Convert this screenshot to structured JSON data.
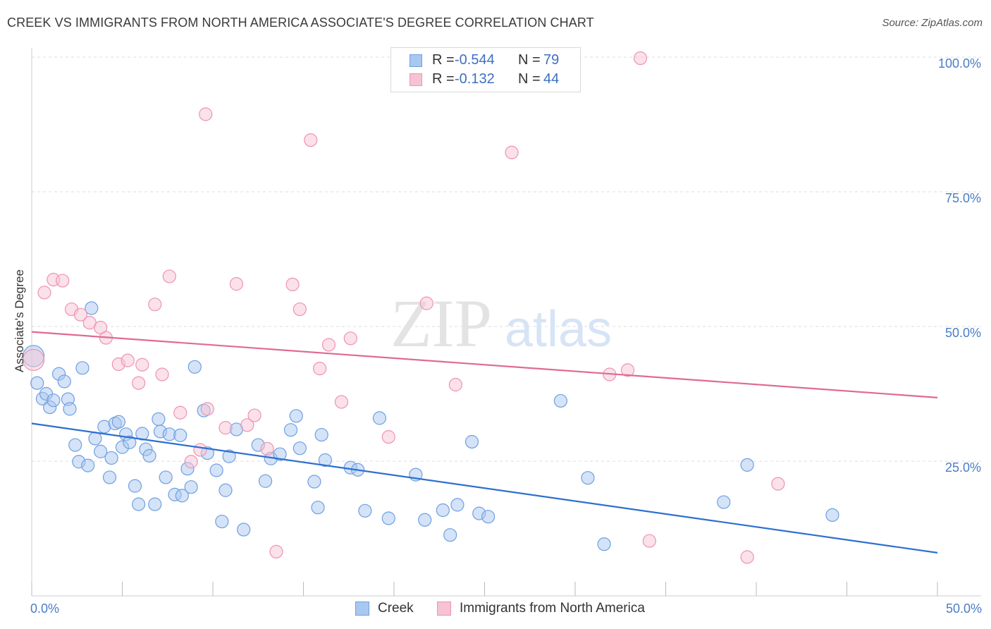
{
  "header": {
    "title": "CREEK VS IMMIGRANTS FROM NORTH AMERICA ASSOCIATE'S DEGREE CORRELATION CHART",
    "source": "Source: ZipAtlas.com"
  },
  "legend_top": {
    "rows": [
      {
        "r_label": "R =",
        "r_value": "-0.544",
        "n_label": "N =",
        "n_value": "79"
      },
      {
        "r_label": "R =",
        "r_value": "-0.132",
        "n_label": "N =",
        "n_value": "44"
      }
    ]
  },
  "legend_bottom": {
    "items": [
      "Creek",
      "Immigrants from North America"
    ]
  },
  "watermark": {
    "zip": "ZIP",
    "atlas": "atlas"
  },
  "colors": {
    "creek_fill": "#a9c8f0",
    "creek_stroke": "#6f9fe0",
    "creek_line": "#2d6fcf",
    "immig_fill": "#f7c3d3",
    "immig_stroke": "#ee93b1",
    "immig_line": "#e06a93",
    "tick_text": "#4a7cc7",
    "grid": "#dddddd"
  },
  "chart_data": {
    "type": "scatter",
    "title": "CREEK VS IMMIGRANTS FROM NORTH AMERICA ASSOCIATE'S DEGREE CORRELATION CHART",
    "xlabel": "",
    "ylabel": "Associate's Degree",
    "xlim": [
      0,
      50
    ],
    "ylim": [
      0,
      102
    ],
    "x_tick_labels": [
      "0.0%",
      "50.0%"
    ],
    "y_tick_values": [
      25,
      50,
      75,
      100
    ],
    "y_tick_labels": [
      "25.0%",
      "50.0%",
      "75.0%",
      "100.0%"
    ],
    "grid": "horizontal dashed",
    "legend_position": "top-center",
    "series": [
      {
        "name": "Creek",
        "r": -0.544,
        "n": 79,
        "trend": {
          "x": [
            0,
            50
          ],
          "y": [
            32.0,
            8.0
          ]
        },
        "points": [
          [
            0.1,
            44.5
          ],
          [
            0.3,
            39.5
          ],
          [
            0.6,
            36.6
          ],
          [
            0.8,
            37.5
          ],
          [
            1.0,
            35.0
          ],
          [
            1.2,
            36.3
          ],
          [
            1.5,
            41.2
          ],
          [
            1.8,
            39.8
          ],
          [
            2.0,
            36.5
          ],
          [
            2.1,
            34.7
          ],
          [
            2.4,
            28.0
          ],
          [
            2.6,
            24.9
          ],
          [
            2.8,
            42.3
          ],
          [
            3.1,
            24.2
          ],
          [
            3.3,
            53.4
          ],
          [
            3.5,
            29.2
          ],
          [
            3.8,
            26.8
          ],
          [
            4.0,
            31.4
          ],
          [
            4.3,
            22.0
          ],
          [
            4.4,
            25.6
          ],
          [
            4.6,
            32.0
          ],
          [
            4.8,
            32.3
          ],
          [
            5.0,
            27.6
          ],
          [
            5.2,
            30.0
          ],
          [
            5.4,
            28.5
          ],
          [
            5.7,
            20.4
          ],
          [
            5.9,
            17.0
          ],
          [
            6.1,
            30.1
          ],
          [
            6.3,
            27.2
          ],
          [
            6.5,
            26.0
          ],
          [
            6.8,
            17.0
          ],
          [
            7.0,
            32.8
          ],
          [
            7.1,
            30.5
          ],
          [
            7.4,
            22.0
          ],
          [
            7.6,
            30.0
          ],
          [
            7.9,
            18.8
          ],
          [
            8.2,
            29.8
          ],
          [
            8.3,
            18.6
          ],
          [
            8.6,
            23.6
          ],
          [
            8.8,
            20.2
          ],
          [
            9.0,
            42.5
          ],
          [
            9.5,
            34.4
          ],
          [
            9.7,
            26.5
          ],
          [
            10.2,
            23.3
          ],
          [
            10.5,
            13.8
          ],
          [
            10.7,
            19.6
          ],
          [
            10.9,
            25.9
          ],
          [
            11.3,
            30.9
          ],
          [
            11.7,
            12.3
          ],
          [
            12.5,
            28.0
          ],
          [
            12.9,
            21.3
          ],
          [
            13.2,
            25.5
          ],
          [
            13.7,
            26.3
          ],
          [
            14.3,
            30.8
          ],
          [
            14.6,
            33.4
          ],
          [
            14.8,
            27.4
          ],
          [
            15.6,
            21.2
          ],
          [
            15.8,
            16.4
          ],
          [
            16.0,
            29.9
          ],
          [
            16.2,
            25.2
          ],
          [
            17.6,
            23.8
          ],
          [
            18.0,
            23.4
          ],
          [
            18.4,
            15.8
          ],
          [
            19.2,
            33.0
          ],
          [
            19.7,
            14.4
          ],
          [
            21.2,
            22.5
          ],
          [
            21.7,
            14.1
          ],
          [
            22.7,
            15.9
          ],
          [
            23.1,
            11.3
          ],
          [
            23.5,
            16.9
          ],
          [
            24.3,
            28.6
          ],
          [
            24.7,
            15.3
          ],
          [
            25.2,
            14.7
          ],
          [
            29.2,
            36.2
          ],
          [
            30.7,
            21.9
          ],
          [
            31.6,
            9.6
          ],
          [
            38.2,
            17.4
          ],
          [
            39.5,
            24.3
          ],
          [
            44.2,
            15.0
          ]
        ]
      },
      {
        "name": "Immigrants from North America",
        "r": -0.132,
        "n": 44,
        "trend": {
          "x": [
            0,
            50
          ],
          "y": [
            49.0,
            36.8
          ]
        },
        "points": [
          [
            0.1,
            43.8
          ],
          [
            0.7,
            56.3
          ],
          [
            1.2,
            58.7
          ],
          [
            1.7,
            58.5
          ],
          [
            2.2,
            53.2
          ],
          [
            2.7,
            52.2
          ],
          [
            3.2,
            50.7
          ],
          [
            3.8,
            49.8
          ],
          [
            4.1,
            47.9
          ],
          [
            4.8,
            43.0
          ],
          [
            5.3,
            43.7
          ],
          [
            5.9,
            39.5
          ],
          [
            6.1,
            42.9
          ],
          [
            6.8,
            54.1
          ],
          [
            7.2,
            41.1
          ],
          [
            7.6,
            59.3
          ],
          [
            8.2,
            34.0
          ],
          [
            8.8,
            24.9
          ],
          [
            9.3,
            27.1
          ],
          [
            9.6,
            89.4
          ],
          [
            9.7,
            34.7
          ],
          [
            10.7,
            31.2
          ],
          [
            11.3,
            57.9
          ],
          [
            11.9,
            31.7
          ],
          [
            12.3,
            33.5
          ],
          [
            13.0,
            27.3
          ],
          [
            13.5,
            8.2
          ],
          [
            14.4,
            57.8
          ],
          [
            14.8,
            53.2
          ],
          [
            15.4,
            84.6
          ],
          [
            15.9,
            42.2
          ],
          [
            16.4,
            46.6
          ],
          [
            17.1,
            36.0
          ],
          [
            17.6,
            47.8
          ],
          [
            19.7,
            29.5
          ],
          [
            21.8,
            54.3
          ],
          [
            23.4,
            39.2
          ],
          [
            31.9,
            41.1
          ],
          [
            32.9,
            41.9
          ],
          [
            33.6,
            99.8
          ],
          [
            34.1,
            10.2
          ],
          [
            39.5,
            7.2
          ],
          [
            41.2,
            20.8
          ],
          [
            26.5,
            82.3
          ]
        ]
      }
    ]
  }
}
